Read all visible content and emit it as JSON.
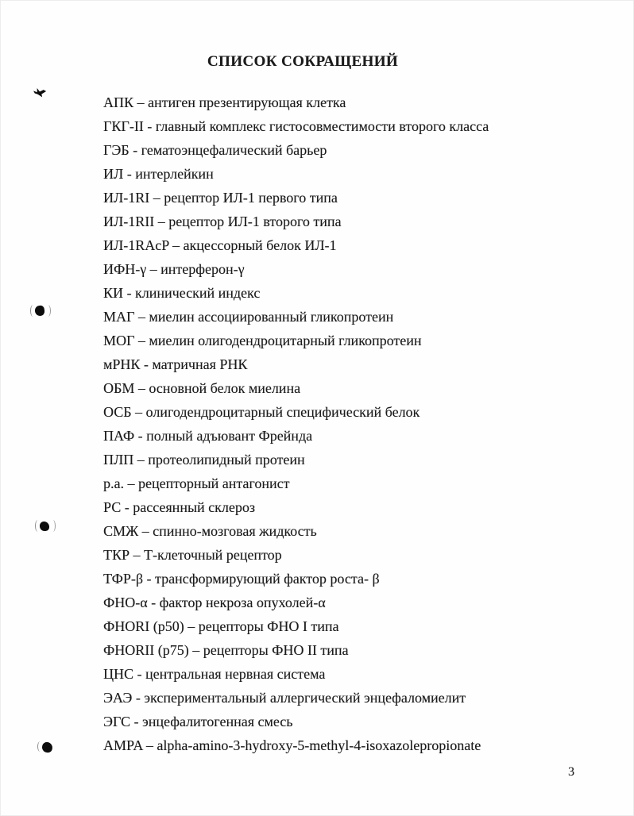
{
  "page": {
    "title": "СПИСОК СОКРАЩЕНИЙ",
    "page_number": "3"
  },
  "abbreviations": [
    {
      "abbr": "АПК",
      "dash": "–",
      "definition": "антиген презентирующая клетка"
    },
    {
      "abbr": "ГКГ-II",
      "dash": "-",
      "definition": "главный комплекс гистосовместимости второго класса"
    },
    {
      "abbr": "ГЭБ",
      "dash": "-",
      "definition": "гематоэнцефалический барьер"
    },
    {
      "abbr": "ИЛ",
      "dash": "-",
      "definition": "интерлейкин"
    },
    {
      "abbr": "ИЛ-1RI",
      "dash": "–",
      "definition": "рецептор ИЛ-1 первого типа"
    },
    {
      "abbr": "ИЛ-1RII",
      "dash": "–",
      "definition": "рецептор ИЛ-1 второго типа"
    },
    {
      "abbr": "ИЛ-1RAcP",
      "dash": "–",
      "definition": "акцессорный белок ИЛ-1"
    },
    {
      "abbr": "ИФН-γ",
      "dash": "–",
      "definition": "интерферон-γ"
    },
    {
      "abbr": "КИ",
      "dash": "-",
      "definition": "клинический индекс"
    },
    {
      "abbr": "МАГ",
      "dash": "–",
      "definition": "миелин ассоциированный гликопротеин"
    },
    {
      "abbr": "МОГ",
      "dash": "–",
      "definition": "миелин олигодендроцитарный гликопротеин"
    },
    {
      "abbr": "мРНК",
      "dash": "-",
      "definition": "матричная РНК"
    },
    {
      "abbr": "ОБМ",
      "dash": "–",
      "definition": "основной белок миелина"
    },
    {
      "abbr": "ОСБ",
      "dash": "–",
      "definition": "олигодендроцитарный специфический белок"
    },
    {
      "abbr": "ПАФ",
      "dash": "-",
      "definition": "полный адъювант Фрейнда"
    },
    {
      "abbr": "ПЛП",
      "dash": "–",
      "definition": "протеолипидный протеин"
    },
    {
      "abbr": "р.а.",
      "dash": "–",
      "definition": "рецепторный антагонист"
    },
    {
      "abbr": "РС",
      "dash": "-",
      "definition": "рассеянный склероз"
    },
    {
      "abbr": "СМЖ",
      "dash": "–",
      "definition": "спинно-мозговая жидкость"
    },
    {
      "abbr": "ТКР",
      "dash": "–",
      "definition": "Т-клеточный рецептор"
    },
    {
      "abbr": "ТФР-β",
      "dash": "-",
      "definition": "трансформирующий фактор роста- β"
    },
    {
      "abbr": "ФНО-α",
      "dash": "-",
      "definition": "фактор некроза опухолей-α"
    },
    {
      "abbr": "ФНОRI (p50)",
      "dash": "–",
      "definition": "рецепторы ФНО I типа"
    },
    {
      "abbr": "ФНОRII (p75)",
      "dash": "–",
      "definition": "рецепторы ФНО II типа"
    },
    {
      "abbr": "ЦНС",
      "dash": "-",
      "definition": "центральная нервная система"
    },
    {
      "abbr": "ЭАЭ",
      "dash": "-",
      "definition": "экспериментальный аллергический энцефаломиелит"
    },
    {
      "abbr": "ЭГС",
      "dash": "-",
      "definition": "энцефалитогенная смесь"
    },
    {
      "abbr": "AMPA",
      "dash": "–",
      "definition": "alpha-amino-3-hydroxy-5-methyl-4-isoxazolepropionate"
    }
  ],
  "artifacts": [
    "bird-shaped-ink-blot",
    "round-ink-blot-with-parentheses",
    "round-ink-blot-with-parentheses",
    "round-ink-blot"
  ],
  "colors": {
    "text": "#1b1b1b",
    "background": "#fefefe"
  }
}
